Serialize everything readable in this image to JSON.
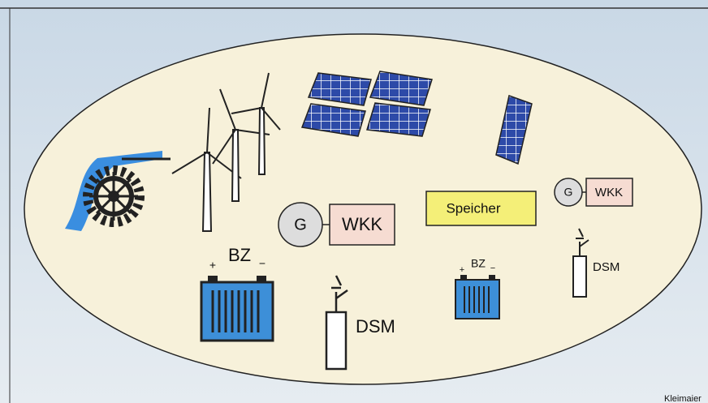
{
  "generators": [
    {
      "symbol": "G",
      "label": "WKK"
    },
    {
      "symbol": "G",
      "label": "WKK"
    }
  ],
  "storage": {
    "label": "Speicher"
  },
  "batteries": [
    {
      "label": "BZ",
      "plus": "+",
      "minus": "−"
    },
    {
      "label": "BZ",
      "plus": "+",
      "minus": "−"
    }
  ],
  "dsm": [
    {
      "label": "DSM"
    },
    {
      "label": "DSM"
    }
  ],
  "credit": "Kleimaier"
}
